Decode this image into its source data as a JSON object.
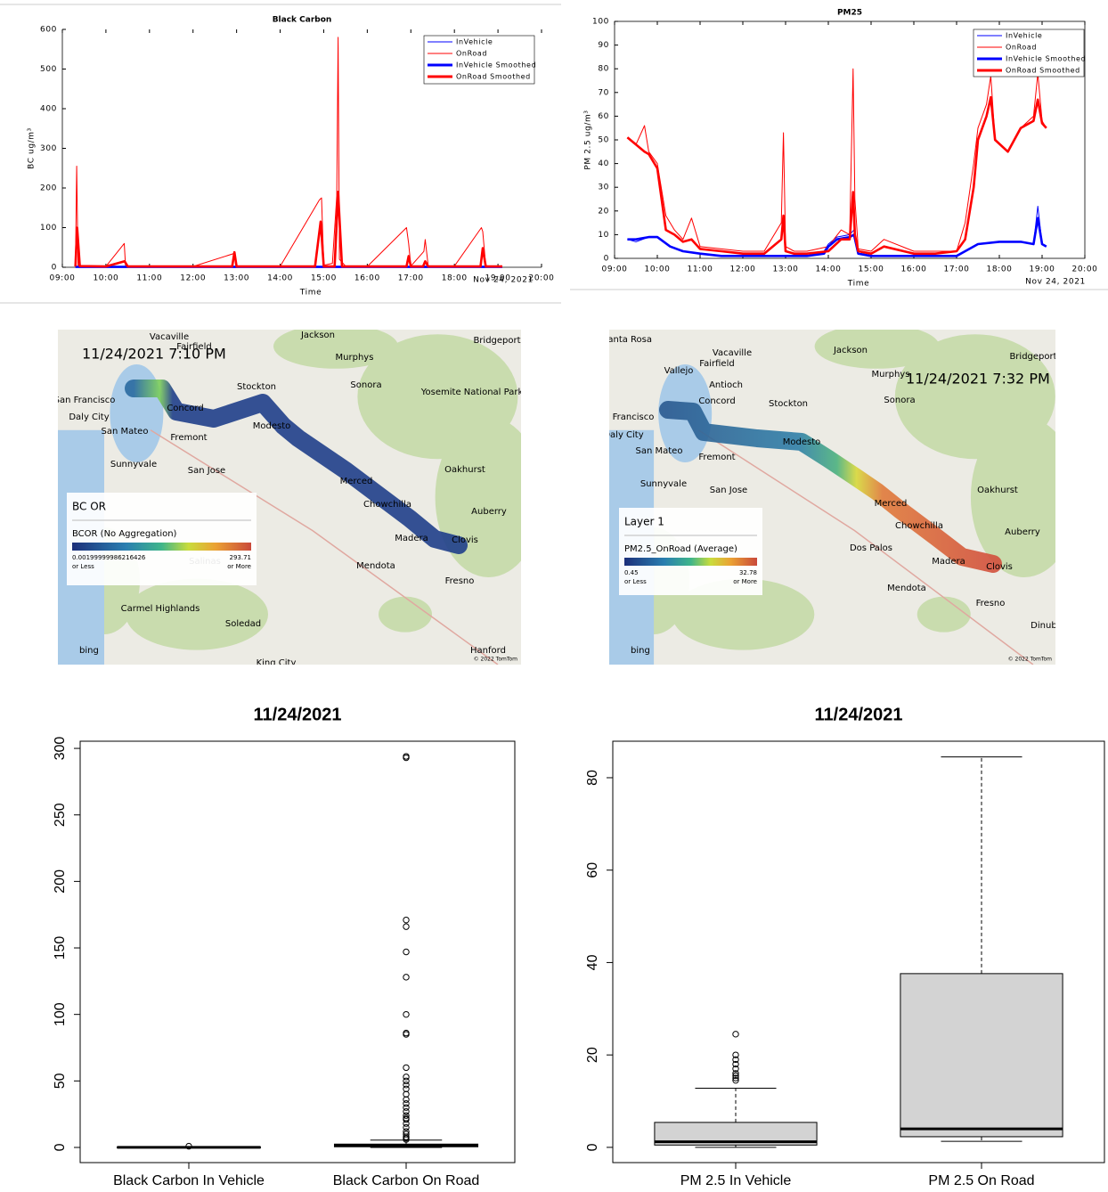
{
  "chart_data": [
    {
      "type": "line",
      "title": "Black Carbon",
      "x_label": "Time",
      "date_label": "Nov 24, 2021",
      "y_label": "BC ug/m³",
      "xlim": [
        9,
        20
      ],
      "ylim": [
        0,
        600
      ],
      "xticks": [
        {
          "value": 9,
          "label": "09:00"
        },
        {
          "value": 10,
          "label": "10:00"
        },
        {
          "value": 11,
          "label": "11:00"
        },
        {
          "value": 12,
          "label": "12:00"
        },
        {
          "value": 13,
          "label": "13:00"
        },
        {
          "value": 14,
          "label": "14:00"
        },
        {
          "value": 15,
          "label": "15:00"
        },
        {
          "value": 16,
          "label": "16:00"
        },
        {
          "value": 17,
          "label": "17:00"
        },
        {
          "value": 18,
          "label": "18:00"
        },
        {
          "value": 19,
          "label": "19:00"
        },
        {
          "value": 20,
          "label": "20:00"
        }
      ],
      "yticks": [
        0,
        100,
        200,
        300,
        400,
        500,
        600
      ],
      "series": [
        {
          "name": "InVehicle",
          "color": "#0000ff",
          "x": [
            9.3,
            10,
            11,
            12,
            13,
            13.5,
            14,
            15,
            16,
            17,
            18,
            19.1
          ],
          "values": [
            1,
            1,
            1,
            1,
            1,
            1,
            2,
            1,
            1,
            1,
            1,
            1
          ]
        },
        {
          "name": "OnRoad",
          "color": "#ff0000",
          "x": [
            9.3,
            9.33,
            9.36,
            9.45,
            10,
            10.42,
            10.45,
            10.5,
            11,
            12,
            12.95,
            13,
            14,
            14.9,
            14.95,
            15.0,
            15.2,
            15.3,
            15.33,
            15.36,
            15.5,
            16,
            16.9,
            16.95,
            17.0,
            17.3,
            17.33,
            17.4,
            18,
            18.62,
            18.65,
            18.72,
            19
          ],
          "values": [
            2,
            255,
            5,
            3,
            2,
            60,
            5,
            2,
            2,
            2,
            35,
            3,
            2,
            170,
            175,
            5,
            10,
            180,
            580,
            20,
            3,
            2,
            100,
            60,
            3,
            40,
            70,
            3,
            3,
            100,
            90,
            3,
            2
          ]
        },
        {
          "name": "InVehicle Smoothed",
          "color": "#0000ff",
          "x": [
            9.3,
            10,
            11,
            12,
            13,
            13.5,
            14,
            15,
            16,
            17,
            18,
            19.1
          ],
          "values": [
            1,
            1,
            1,
            1,
            1,
            1,
            1,
            1,
            1,
            1,
            1,
            1
          ]
        },
        {
          "name": "OnRoad Smoothed",
          "color": "#ff0000",
          "x": [
            9.3,
            9.34,
            9.4,
            10,
            10.43,
            10.5,
            11,
            12.9,
            12.95,
            13.0,
            14.8,
            14.93,
            15.0,
            15.25,
            15.33,
            15.42,
            16,
            16.9,
            16.95,
            17.0,
            17.28,
            17.33,
            17.4,
            18.6,
            18.65,
            18.72,
            19.1
          ],
          "values": [
            2,
            100,
            3,
            2,
            15,
            2,
            2,
            2,
            38,
            2,
            2,
            115,
            2,
            2,
            190,
            2,
            2,
            2,
            28,
            2,
            2,
            15,
            2,
            2,
            48,
            2,
            2
          ]
        }
      ]
    },
    {
      "type": "line",
      "title": "PM25",
      "x_label": "Time",
      "date_label": "Nov 24, 2021",
      "y_label": "PM 2.5 ug/m³",
      "xlim": [
        9,
        20
      ],
      "ylim": [
        0,
        100
      ],
      "xticks": [
        {
          "value": 9,
          "label": "09:00"
        },
        {
          "value": 10,
          "label": "10:00"
        },
        {
          "value": 11,
          "label": "11:00"
        },
        {
          "value": 12,
          "label": "12:00"
        },
        {
          "value": 13,
          "label": "13:00"
        },
        {
          "value": 14,
          "label": "14:00"
        },
        {
          "value": 15,
          "label": "15:00"
        },
        {
          "value": 16,
          "label": "16:00"
        },
        {
          "value": 17,
          "label": "17:00"
        },
        {
          "value": 18,
          "label": "18:00"
        },
        {
          "value": 19,
          "label": "19:00"
        },
        {
          "value": 20,
          "label": "20:00"
        }
      ],
      "yticks": [
        0,
        10,
        20,
        30,
        40,
        50,
        60,
        70,
        80,
        90,
        100
      ],
      "series": [
        {
          "name": "InVehicle",
          "color": "#0000ff",
          "x": [
            9.3,
            9.5,
            9.8,
            10,
            10.3,
            10.6,
            11,
            11.5,
            12,
            12.5,
            13,
            13.5,
            13.9,
            14.0,
            14.2,
            14.5,
            14.6,
            14.7,
            15,
            16,
            17,
            17.2,
            17.5,
            18,
            18.5,
            18.8,
            18.9,
            19.0,
            19.1
          ],
          "values": [
            8,
            7,
            9,
            9,
            5,
            3,
            2,
            1,
            1,
            1,
            1,
            1,
            3,
            6,
            9,
            10,
            12,
            2,
            1,
            1,
            1,
            3,
            6,
            7,
            7,
            6,
            22,
            6,
            5
          ]
        },
        {
          "name": "OnRoad",
          "color": "#ff0000",
          "x": [
            9.3,
            9.5,
            9.7,
            9.8,
            10,
            10.2,
            10.4,
            10.6,
            10.8,
            11,
            11.5,
            12,
            12.5,
            12.9,
            12.95,
            13,
            13.2,
            13.5,
            14,
            14.3,
            14.5,
            14.58,
            14.62,
            14.7,
            15,
            15.3,
            16,
            16.5,
            17,
            17.2,
            17.4,
            17.5,
            17.7,
            17.8,
            17.9,
            18.2,
            18.5,
            18.8,
            18.9,
            19.0,
            19.1
          ],
          "values": [
            51,
            48,
            56,
            45,
            40,
            18,
            12,
            8,
            17,
            5,
            4,
            3,
            3,
            15,
            53,
            5,
            3,
            3,
            5,
            12,
            10,
            80,
            25,
            4,
            3,
            8,
            3,
            3,
            3,
            15,
            40,
            55,
            65,
            77,
            50,
            45,
            55,
            60,
            78,
            58,
            55
          ]
        },
        {
          "name": "InVehicle Smoothed",
          "color": "#0000ff",
          "x": [
            9.3,
            9.5,
            9.8,
            10,
            10.3,
            10.6,
            11,
            11.5,
            12,
            12.5,
            13,
            13.5,
            13.9,
            14.0,
            14.2,
            14.5,
            14.6,
            14.7,
            15,
            16,
            17,
            17.2,
            17.5,
            18,
            18.5,
            18.8,
            18.9,
            19.0,
            19.1
          ],
          "values": [
            8,
            8,
            9,
            9,
            5,
            3,
            2,
            1,
            1,
            1,
            1,
            1,
            2,
            5,
            8,
            9,
            10,
            2,
            1,
            1,
            1,
            3,
            6,
            7,
            7,
            6,
            17,
            6,
            5
          ]
        },
        {
          "name": "OnRoad Smoothed",
          "color": "#ff0000",
          "x": [
            9.3,
            9.5,
            9.7,
            9.8,
            10,
            10.2,
            10.4,
            10.6,
            10.8,
            11,
            11.5,
            12,
            12.5,
            12.9,
            12.95,
            13,
            13.2,
            13.5,
            14,
            14.3,
            14.5,
            14.58,
            14.62,
            14.7,
            15,
            15.3,
            16,
            16.5,
            17,
            17.2,
            17.4,
            17.5,
            17.7,
            17.8,
            17.9,
            18.2,
            18.5,
            18.8,
            18.9,
            19.0,
            19.1
          ],
          "values": [
            51,
            48,
            45,
            44,
            38,
            12,
            10,
            7,
            8,
            4,
            3,
            2,
            2,
            8,
            18,
            3,
            2,
            2,
            3,
            8,
            8,
            28,
            10,
            3,
            2,
            5,
            2,
            2,
            3,
            8,
            30,
            50,
            60,
            68,
            50,
            45,
            55,
            58,
            67,
            57,
            55
          ]
        }
      ]
    },
    {
      "type": "box",
      "title": "11/24/2021",
      "categories": [
        "Black Carbon In Vehicle",
        "Black Carbon On Road"
      ],
      "ylim": [
        -11.4,
        305.4
      ],
      "yticks": [
        0,
        50,
        100,
        150,
        200,
        250,
        300
      ],
      "color": "#d3d3d3",
      "boxes": [
        {
          "min": 0,
          "q1": 0,
          "median": 0.1,
          "q3": 0.2,
          "max": 0.4,
          "outliers": [
            0.9
          ]
        },
        {
          "min": 0,
          "q1": 0.5,
          "median": 1.5,
          "q3": 2.5,
          "max": 5.5,
          "outliers": [
            6,
            7,
            8,
            10,
            12,
            15,
            18,
            21,
            22,
            24,
            27,
            30,
            33,
            36,
            40,
            44,
            47,
            50,
            53,
            60,
            85,
            86,
            100,
            128,
            147,
            166,
            171,
            293,
            294
          ]
        }
      ]
    },
    {
      "type": "box",
      "title": "11/24/2021",
      "categories": [
        "PM 2.5 In Vehicle",
        "PM 2.5 On Road"
      ],
      "ylim": [
        -3.3,
        87.9
      ],
      "yticks": [
        0,
        20,
        40,
        60,
        80
      ],
      "color": "#d3d3d3",
      "boxes": [
        {
          "min": 0,
          "q1": 0.5,
          "median": 1.2,
          "q3": 5.4,
          "max": 12.8,
          "outliers": [
            14.5,
            15,
            15.5,
            16,
            17,
            18,
            19,
            20,
            24.5
          ]
        },
        {
          "min": 1.3,
          "q1": 2.3,
          "median": 4.0,
          "q3": 37.6,
          "max": 84.5,
          "outliers": []
        }
      ]
    }
  ],
  "maps": [
    {
      "timestamp": "11/24/2021 7:10 PM",
      "legend": {
        "title": "BC OR",
        "layer": "BCOR (No Aggregation)",
        "min": "0.00199999986216426",
        "min_note": "or Less",
        "max": "293.71",
        "max_note": "or More"
      },
      "places": [
        "Vacaville",
        "Fairfield",
        "Jackson",
        "Murphys",
        "Stockton",
        "Concord",
        "Sonora",
        "San Francisco",
        "Daly City",
        "San Mateo",
        "Fremont",
        "Sunnyvale",
        "San Jose",
        "Modesto",
        "Oakhurst",
        "Merced",
        "Chowchilla",
        "Madera",
        "Clovis",
        "Fresno",
        "Mendota",
        "Carmel Highlands",
        "Soledad",
        "Hanford",
        "King City",
        "Auberry",
        "Bridgeport",
        "Yosemite National Park",
        "Salinas"
      ],
      "attribution": "bing",
      "copyright": "© 2022 TomTom"
    },
    {
      "timestamp": "11/24/2021 7:32 PM",
      "legend": {
        "title": "Layer 1",
        "layer": "PM2.5_OnRoad (Average)",
        "min": "0.45",
        "min_note": "or Less",
        "max": "32.78",
        "max_note": "or More"
      },
      "places": [
        "Santa Rosa",
        "Vacaville",
        "Fairfield",
        "Vallejo",
        "Jackson",
        "Bridgeport",
        "Murphys",
        "Antioch",
        "Concord",
        "Stockton",
        "Sonora",
        "San Francisco",
        "Daly City",
        "San Mateo",
        "Fremont",
        "Modesto",
        "Sunnyvale",
        "San Jose",
        "Oakhurst",
        "Merced",
        "Chowchilla",
        "Auberry",
        "Dos Palos",
        "Madera",
        "Clovis",
        "Mendota",
        "Fresno",
        "Dinuba"
      ],
      "attribution": "bing",
      "copyright": "© 2022 TomTom"
    }
  ]
}
